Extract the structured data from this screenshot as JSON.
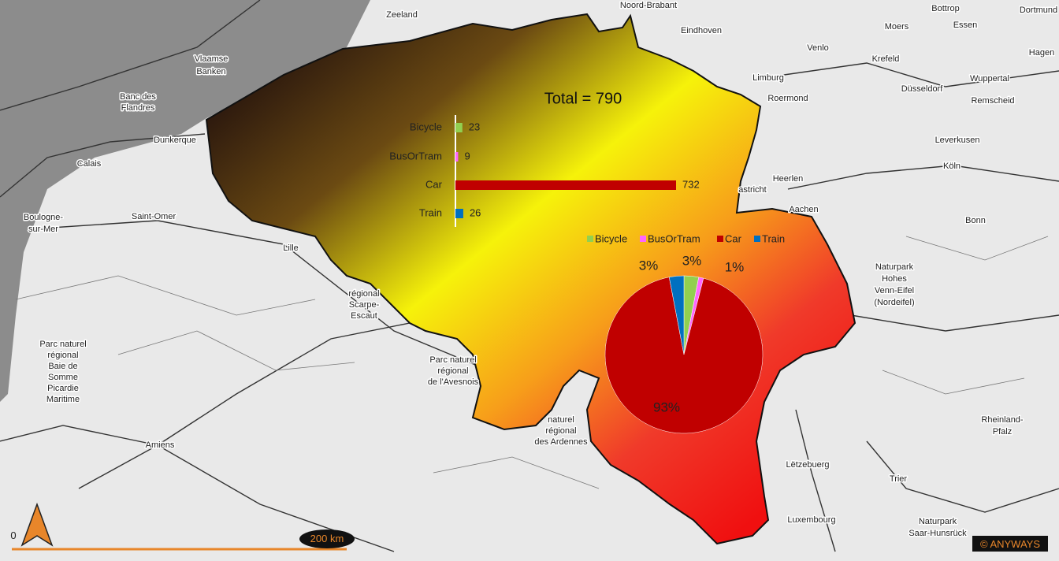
{
  "title": "Total = 790",
  "bar_chart": {
    "type": "bar",
    "orientation": "horizontal",
    "categories": [
      "Bicycle",
      "BusOrTram",
      "Car",
      "Train"
    ],
    "values": [
      23,
      9,
      732,
      26
    ],
    "colors": [
      "#92d050",
      "#ff66ff",
      "#c00000",
      "#0070c0"
    ]
  },
  "pie_chart": {
    "type": "pie",
    "categories": [
      "Bicycle",
      "BusOrTram",
      "Car",
      "Train"
    ],
    "values": [
      3,
      1,
      93,
      3
    ],
    "value_labels": [
      "3%",
      "1%",
      "93%",
      "3%"
    ],
    "colors": [
      "#92d050",
      "#ff66ff",
      "#c00000",
      "#0070c0"
    ],
    "legend": "top"
  },
  "scale_bar": {
    "start": "0",
    "label": "200 km"
  },
  "copyright": "© ANYWAYS",
  "places": [
    "Zeeland",
    "Noord-Brabant",
    "Eindhoven",
    "Venlo",
    "Bottrop",
    "Dortmund",
    "Moers",
    "Essen",
    "Hagen",
    "Krefeld",
    "Wuppertal",
    "Limburg",
    "Roermond",
    "Düsseldorf",
    "Remscheid",
    "Leverkusen",
    "Köln",
    "Heerlen",
    "Aachen",
    "Bonn",
    "astricht",
    "Vlaamse",
    "Banken",
    "Banc des",
    "Flandres",
    "Dunkerque",
    "Calais",
    "Saint-Omer",
    "Boulogne-",
    "sur-Mer",
    "Lille",
    "Amiens",
    "Lëtzebuerg",
    "Luxembourg",
    "Trier",
    "Rheinland-",
    "Pfalz",
    "Naturpark",
    "Hohes",
    "Venn-Eifel",
    "(Nordeifel)",
    "Naturpark",
    "Saar-Hunsrück",
    "Parc naturel",
    "régional",
    "Baie de",
    "Somme",
    "Picardie",
    "Maritime",
    "régional",
    "Scarpe-",
    "Escaut",
    "Parc naturel",
    "régional",
    "de l'Avesnois",
    "naturel",
    "régional",
    "des Ardennes"
  ]
}
